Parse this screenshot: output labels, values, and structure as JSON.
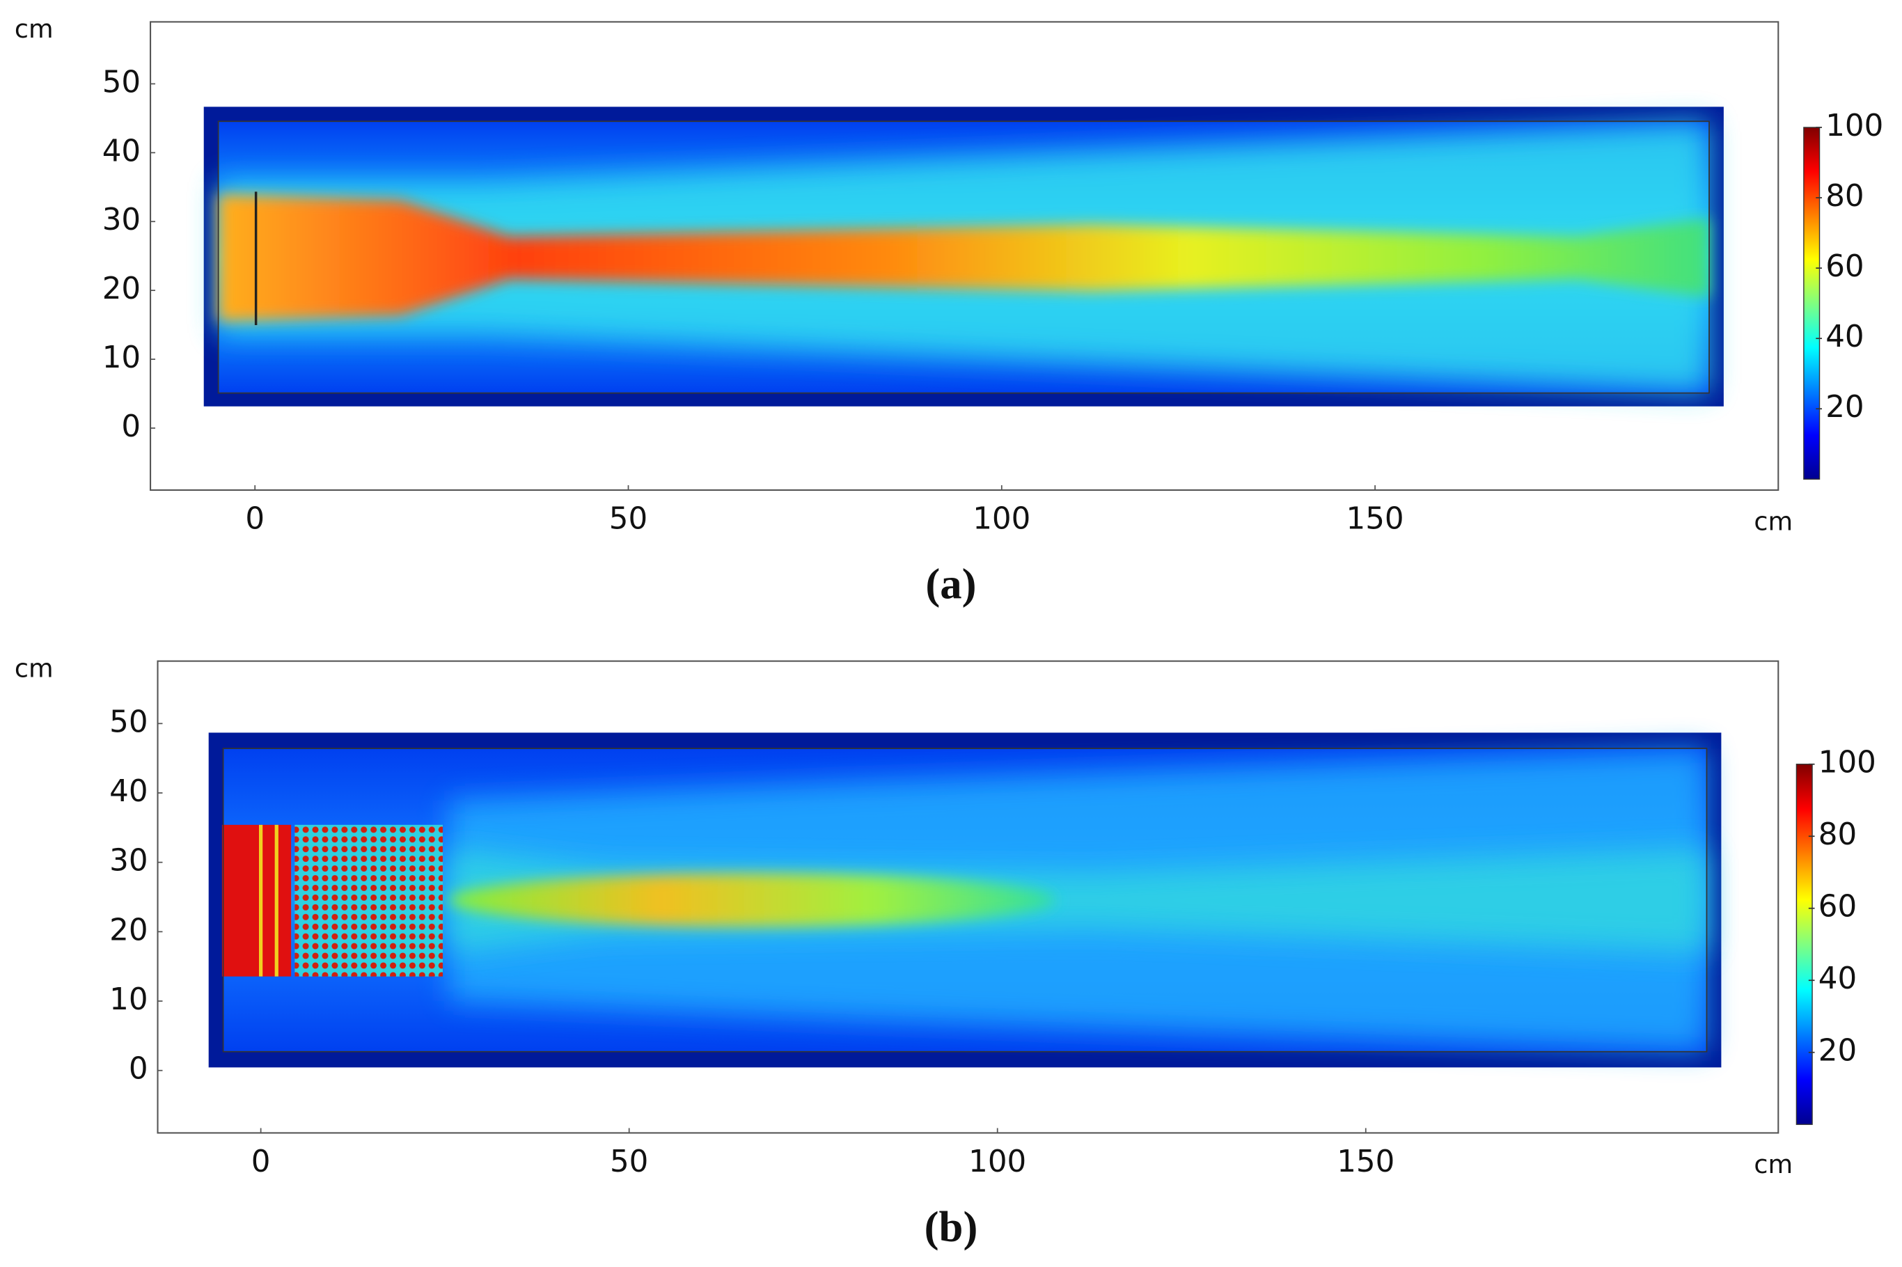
{
  "chart_data": [
    {
      "type": "heatmap",
      "caption": "(a)",
      "x_label": "cm",
      "y_label": "cm",
      "xlim": [
        -14,
        204
      ],
      "ylim": [
        -9,
        59
      ],
      "xticks": [
        0,
        50,
        100,
        150
      ],
      "yticks": [
        0,
        10,
        20,
        30,
        40,
        50
      ],
      "colorbar": {
        "lim": [
          0,
          100
        ],
        "ticks": [
          20,
          40,
          60,
          80,
          100
        ],
        "colormap": "jet"
      }
    },
    {
      "type": "heatmap",
      "caption": "(b)",
      "x_label": "cm",
      "y_label": "cm",
      "xlim": [
        -14,
        206
      ],
      "ylim": [
        -9,
        59
      ],
      "xticks": [
        0,
        50,
        100,
        150
      ],
      "yticks": [
        0,
        10,
        20,
        30,
        40,
        50
      ],
      "colorbar": {
        "lim": [
          0,
          100
        ],
        "ticks": [
          20,
          40,
          60,
          80,
          100
        ],
        "colormap": "jet"
      }
    }
  ]
}
